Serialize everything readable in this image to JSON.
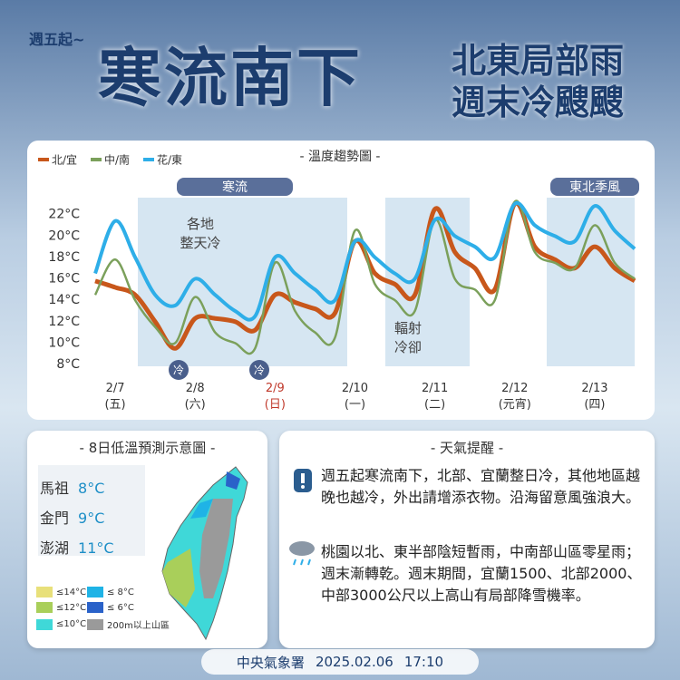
{
  "header": {
    "kicker": "週五起~",
    "title": "寒流南下",
    "subtitle_1": "北東局部雨",
    "subtitle_2": "週末冷颼颼"
  },
  "chart_data": {
    "type": "line",
    "title": "- 溫度趨勢圖 -",
    "categories": [
      null,
      "2/7",
      null,
      null,
      null,
      "2/8",
      null,
      null,
      null,
      "2/9",
      null,
      null,
      null,
      "2/10",
      null,
      null,
      null,
      "2/11",
      null,
      null,
      null,
      "2/12",
      null,
      null,
      null,
      "2/13",
      null,
      null
    ],
    "weekdays": [
      null,
      "(五)",
      null,
      null,
      null,
      "(六)",
      null,
      null,
      null,
      "(日)",
      null,
      null,
      null,
      "(一)",
      null,
      null,
      null,
      "(二)",
      null,
      null,
      null,
      "(元宵)",
      null,
      null,
      null,
      "(四)",
      null,
      null
    ],
    "highlight_category": "2/9",
    "highlight_color": "#c0392b",
    "ylim": [
      8,
      24
    ],
    "yticks": [
      {
        "value": 8,
        "label": "8°C"
      },
      {
        "value": 10,
        "label": "10°C"
      },
      {
        "value": 12,
        "label": "12°C"
      },
      {
        "value": 14,
        "label": "14°C"
      },
      {
        "value": 16,
        "label": "16°C"
      },
      {
        "value": 18,
        "label": "18°C"
      },
      {
        "value": 20,
        "label": "20°C"
      },
      {
        "value": 22,
        "label": "22°C"
      }
    ],
    "series": [
      {
        "name": "北/宜",
        "color": "#c8571b",
        "values": [
          15.8,
          15.2,
          14.5,
          12,
          9.5,
          12.3,
          12.3,
          12,
          11.2,
          14.5,
          13.8,
          13.2,
          12.8,
          19.5,
          16.5,
          15.5,
          14.5,
          22.5,
          18.5,
          17,
          15,
          23,
          19,
          17.8,
          17,
          19,
          17,
          15.8
        ]
      },
      {
        "name": "中/南",
        "color": "#7ba05b",
        "values": [
          14.5,
          17.8,
          14,
          11.5,
          10,
          14.3,
          11,
          10,
          9.5,
          17.5,
          13,
          11,
          10.5,
          20.5,
          15.5,
          14,
          13,
          21.5,
          16,
          15,
          14,
          23.2,
          18.5,
          17.5,
          17,
          21,
          17.5,
          16
        ]
      },
      {
        "name": "花/東",
        "color": "#2eaee8",
        "values": [
          16.5,
          21.4,
          18,
          14.5,
          13.5,
          16,
          14.5,
          13,
          12.5,
          18,
          16.5,
          15,
          14,
          19.5,
          18,
          16.5,
          16,
          21.5,
          20,
          19,
          18,
          23,
          21,
          20,
          19.5,
          22.8,
          20.5,
          18.8
        ]
      }
    ],
    "bands": [
      "寒流",
      "東北季風"
    ],
    "annotations": [
      "各地\n整天冷",
      "輻射\n冷卻"
    ],
    "markers": [
      "冷",
      "冷"
    ]
  },
  "low_temp_map": {
    "title": "- 8日低溫預測示意圖 -",
    "stations": [
      {
        "name": "馬祖",
        "temp": "8°C"
      },
      {
        "name": "金門",
        "temp": "9°C"
      },
      {
        "name": "澎湖",
        "temp": "11°C"
      }
    ],
    "legend": [
      {
        "label": "≤14°C",
        "color": "#e8e07a"
      },
      {
        "label": "≤ 8°C",
        "color": "#1fb3e6"
      },
      {
        "label": "≤12°C",
        "color": "#a9cf5a"
      },
      {
        "label": "≤ 6°C",
        "color": "#2a62c9"
      },
      {
        "label": "≤10°C",
        "color": "#3fd8d8"
      },
      {
        "label": "200m以上山區",
        "color": "#9a9a9a"
      }
    ]
  },
  "reminder": {
    "title": "- 天氣提醒 -",
    "items": [
      "週五起寒流南下，北部、宜蘭整日冷，其他地區越晚也越冷，外出請增添衣物。沿海留意風強浪大。",
      "桃園以北、東半部陰短暫雨，中南部山區零星雨；週末漸轉乾。週末期間，宜蘭1500、北部2000、中部3000公尺以上高山有局部降雪機率。"
    ]
  },
  "footer": {
    "agency": "中央氣象署",
    "date": "2025.02.06",
    "time": "17:10"
  }
}
